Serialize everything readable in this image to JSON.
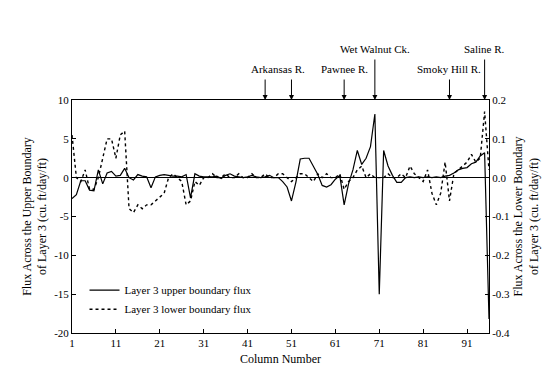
{
  "chart_data": {
    "type": "line",
    "x_label": "Column Number",
    "y_label": "Flux Across the Upper Boundary\nof Layer 3 (cu. ft/day/ft)",
    "y2_label": "Flux Across the Lower Boundary\nof Layer 3 (cu. ft/day/ft)",
    "x": [
      1,
      2,
      3,
      4,
      5,
      6,
      7,
      8,
      9,
      10,
      11,
      12,
      13,
      14,
      15,
      16,
      17,
      18,
      19,
      20,
      21,
      22,
      23,
      24,
      25,
      26,
      27,
      28,
      29,
      30,
      31,
      32,
      33,
      34,
      35,
      36,
      37,
      38,
      39,
      40,
      41,
      42,
      43,
      44,
      45,
      46,
      47,
      48,
      49,
      50,
      51,
      52,
      53,
      54,
      55,
      56,
      57,
      58,
      59,
      60,
      61,
      62,
      63,
      64,
      65,
      66,
      67,
      68,
      69,
      70,
      71,
      72,
      73,
      74,
      75,
      76,
      77,
      78,
      79,
      80,
      81,
      82,
      83,
      84,
      85,
      86,
      87,
      88,
      89,
      90,
      91,
      92,
      93,
      94,
      95,
      96
    ],
    "xlim": [
      1,
      96
    ],
    "xticks": [
      1,
      11,
      21,
      31,
      41,
      51,
      61,
      71,
      81,
      91
    ],
    "ylim": [
      -20,
      10
    ],
    "yticks": [
      -20,
      -15,
      -10,
      -5,
      0,
      5,
      10
    ],
    "y2lim": [
      -0.4,
      0.2
    ],
    "y2ticks": [
      -0.4,
      -0.3,
      -0.2,
      -0.1,
      {
        "value": 0,
        "label": "0.0"
      },
      0.1,
      0.2
    ],
    "grid": false,
    "legend": "lower left",
    "series": [
      {
        "name": "Layer 3 upper boundary flux",
        "color": "#000000",
        "line_style": "solid",
        "axis": "y",
        "values": [
          -2.7,
          -2.2,
          -0.4,
          -0.4,
          -1.6,
          -1.7,
          1.0,
          -0.8,
          0.6,
          0.8,
          0.2,
          0.3,
          1.2,
          0.0,
          -0.3,
          0.4,
          0.2,
          0.1,
          -1.3,
          0.1,
          0.3,
          0.4,
          0.3,
          0.2,
          0.2,
          0.1,
          0.4,
          -2.6,
          0.5,
          0.2,
          0.1,
          0.1,
          0.1,
          0.2,
          -0.1,
          0.3,
          0.5,
          0.2,
          0.1,
          0.0,
          0.1,
          0.3,
          0.1,
          0.0,
          0.1,
          0.3,
          0.0,
          0.0,
          -0.5,
          -1.2,
          -3.0,
          -0.6,
          2.4,
          2.5,
          2.5,
          1.5,
          0.4,
          -1.0,
          -1.2,
          -0.9,
          -0.2,
          0.3,
          -3.5,
          -0.8,
          1.0,
          3.5,
          1.7,
          2.5,
          4.0,
          8.2,
          -15.0,
          3.5,
          1.5,
          0.3,
          -0.6,
          -0.6,
          0.0,
          0.1,
          0.0,
          0.1,
          0.0,
          0.1,
          0.0,
          0.1,
          0.0,
          0.2,
          0.3,
          0.6,
          1.0,
          1.2,
          1.3,
          1.8,
          2.0,
          2.8,
          3.2,
          -18.2
        ]
      },
      {
        "name": "Layer 3 lower boundary flux",
        "color": "#000000",
        "line_style": "dotted",
        "axis": "y2",
        "values": [
          0.11,
          0.0,
          -0.01,
          0.02,
          -0.03,
          -0.03,
          0.0,
          0.05,
          0.1,
          0.1,
          0.05,
          0.11,
          0.12,
          -0.08,
          -0.09,
          -0.07,
          -0.08,
          -0.07,
          -0.07,
          -0.06,
          -0.05,
          -0.04,
          0.0,
          0.01,
          0.0,
          -0.01,
          -0.07,
          -0.06,
          -0.01,
          -0.02,
          0.0,
          0.0,
          0.01,
          0.0,
          0.0,
          0.01,
          0.0,
          0.0,
          0.01,
          0.0,
          0.0,
          0.01,
          0.0,
          0.0,
          0.01,
          0.0,
          0.0,
          0.01,
          0.01,
          0.0,
          -0.01,
          0.0,
          0.01,
          0.01,
          0.0,
          -0.01,
          0.01,
          0.0,
          0.01,
          0.0,
          0.0,
          0.01,
          -0.03,
          -0.01,
          0.0,
          0.02,
          0.03,
          0.0,
          0.01,
          0.0,
          0.0,
          0.0,
          0.01,
          0.0,
          0.0,
          0.01,
          0.0,
          0.03,
          0.01,
          0.0,
          -0.01,
          0.02,
          -0.04,
          -0.07,
          -0.04,
          0.04,
          -0.06,
          0.01,
          0.02,
          0.03,
          0.04,
          0.06,
          0.04,
          0.05,
          0.17,
          0.02
        ]
      }
    ],
    "annotations": [
      {
        "text": "Arkansas R.",
        "x": [
          45,
          51
        ]
      },
      {
        "text": "Pawnee R.",
        "x": [
          63
        ]
      },
      {
        "text": "Wet Walnut Ck.",
        "x": [
          70
        ]
      },
      {
        "text": "Smoky Hill R.",
        "x": [
          87
        ]
      },
      {
        "text": "Saline R.",
        "x": [
          95
        ]
      }
    ]
  }
}
